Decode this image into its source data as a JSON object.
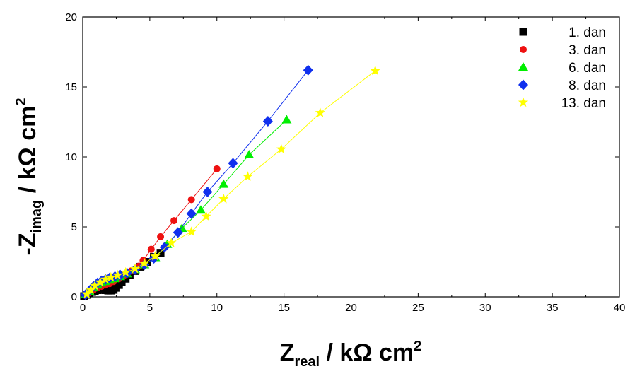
{
  "chart_data": {
    "type": "scatter",
    "xlabel": {
      "main": "Z",
      "sub": "real",
      "rest": " / kΩ cm",
      "sup": "2"
    },
    "ylabel": {
      "main": "-Z",
      "sub": "imag",
      "rest": " / kΩ cm",
      "sup": "2"
    },
    "xlim": [
      0,
      40
    ],
    "ylim": [
      0,
      20
    ],
    "xticks": [
      0,
      5,
      10,
      15,
      20,
      25,
      30,
      35,
      40
    ],
    "yticks": [
      0,
      5,
      10,
      15,
      20
    ],
    "xtick_labels": [
      "0",
      "5",
      "10",
      "15",
      "20",
      "25",
      "30",
      "35",
      "40"
    ],
    "ytick_labels": [
      "0",
      "5",
      "10",
      "15",
      "20"
    ],
    "grid": false,
    "legend_position": "top-right",
    "series": [
      {
        "name": "1. dan",
        "color": "#000000",
        "marker": "square",
        "points": [
          [
            0.1,
            0.05
          ],
          [
            0.3,
            0.15
          ],
          [
            0.5,
            0.25
          ],
          [
            0.7,
            0.35
          ],
          [
            0.9,
            0.42
          ],
          [
            1.1,
            0.48
          ],
          [
            1.3,
            0.5
          ],
          [
            1.5,
            0.5
          ],
          [
            1.7,
            0.48
          ],
          [
            1.9,
            0.45
          ],
          [
            2.1,
            0.45
          ],
          [
            2.3,
            0.5
          ],
          [
            2.5,
            0.65
          ],
          [
            2.7,
            0.85
          ],
          [
            2.9,
            1.05
          ],
          [
            3.2,
            1.3
          ],
          [
            3.5,
            1.55
          ],
          [
            3.9,
            1.85
          ],
          [
            4.3,
            2.15
          ],
          [
            4.8,
            2.5
          ],
          [
            5.3,
            2.85
          ],
          [
            5.8,
            3.15
          ]
        ]
      },
      {
        "name": "3. dan",
        "color": "#ee1111",
        "marker": "circle",
        "points": [
          [
            0.2,
            0.1
          ],
          [
            0.5,
            0.3
          ],
          [
            0.8,
            0.5
          ],
          [
            1.1,
            0.65
          ],
          [
            1.4,
            0.75
          ],
          [
            1.7,
            0.85
          ],
          [
            2.0,
            0.95
          ],
          [
            2.3,
            1.1
          ],
          [
            2.7,
            1.3
          ],
          [
            3.1,
            1.55
          ],
          [
            3.6,
            1.85
          ],
          [
            4.2,
            2.2
          ],
          [
            4.5,
            2.6
          ],
          [
            5.1,
            3.4
          ],
          [
            5.8,
            4.3
          ],
          [
            6.8,
            5.45
          ],
          [
            8.1,
            6.95
          ],
          [
            10.0,
            9.15
          ]
        ]
      },
      {
        "name": "6. dan",
        "color": "#00ee00",
        "marker": "triangle",
        "points": [
          [
            0.2,
            0.15
          ],
          [
            0.5,
            0.4
          ],
          [
            0.8,
            0.65
          ],
          [
            1.1,
            0.85
          ],
          [
            1.4,
            1.0
          ],
          [
            1.7,
            1.1
          ],
          [
            2.0,
            1.2
          ],
          [
            2.4,
            1.3
          ],
          [
            2.8,
            1.45
          ],
          [
            3.3,
            1.65
          ],
          [
            3.9,
            1.95
          ],
          [
            4.6,
            2.3
          ],
          [
            5.4,
            2.8
          ],
          [
            6.3,
            3.75
          ],
          [
            7.4,
            4.9
          ],
          [
            8.8,
            6.2
          ],
          [
            10.5,
            8.05
          ],
          [
            12.4,
            10.15
          ],
          [
            15.2,
            12.65
          ]
        ]
      },
      {
        "name": "8. dan",
        "color": "#1030ee",
        "marker": "diamond",
        "points": [
          [
            0.2,
            0.15
          ],
          [
            0.5,
            0.45
          ],
          [
            0.8,
            0.75
          ],
          [
            1.1,
            1.0
          ],
          [
            1.4,
            1.15
          ],
          [
            1.7,
            1.25
          ],
          [
            2.0,
            1.35
          ],
          [
            2.4,
            1.45
          ],
          [
            2.8,
            1.55
          ],
          [
            3.3,
            1.7
          ],
          [
            3.9,
            1.95
          ],
          [
            4.6,
            2.3
          ],
          [
            5.3,
            2.75
          ],
          [
            6.1,
            3.55
          ],
          [
            7.1,
            4.6
          ],
          [
            8.1,
            5.95
          ],
          [
            9.3,
            7.5
          ],
          [
            11.2,
            9.55
          ],
          [
            13.8,
            12.55
          ],
          [
            16.8,
            16.2
          ]
        ]
      },
      {
        "name": "13. dan",
        "color": "#ffff00",
        "marker": "star",
        "points": [
          [
            0.3,
            0.2
          ],
          [
            0.6,
            0.5
          ],
          [
            0.9,
            0.8
          ],
          [
            1.3,
            1.05
          ],
          [
            1.7,
            1.25
          ],
          [
            2.1,
            1.4
          ],
          [
            2.6,
            1.55
          ],
          [
            3.2,
            1.75
          ],
          [
            3.9,
            2.0
          ],
          [
            4.6,
            2.4
          ],
          [
            5.4,
            2.9
          ],
          [
            6.6,
            3.85
          ],
          [
            8.1,
            4.65
          ],
          [
            9.2,
            5.75
          ],
          [
            10.5,
            7.0
          ],
          [
            12.3,
            8.6
          ],
          [
            14.8,
            10.55
          ],
          [
            17.7,
            13.15
          ],
          [
            21.8,
            16.15
          ]
        ]
      }
    ]
  }
}
